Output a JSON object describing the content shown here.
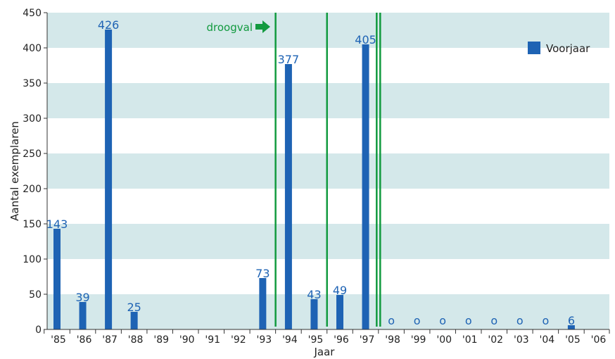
{
  "chart_data": {
    "type": "bar",
    "ylabel": "Aantal exemplaren",
    "xlabel": "Jaar",
    "ylim": [
      0,
      450
    ],
    "yticks": [
      0,
      50,
      100,
      150,
      200,
      250,
      300,
      350,
      400,
      450
    ],
    "grid": "alternating horizontal bands",
    "legend": "top-right",
    "categories": [
      "'85",
      "'86",
      "'87",
      "'88",
      "'89",
      "'90",
      "'91",
      "'92",
      "'93",
      "'94",
      "'95",
      "'96",
      "'97",
      "'98",
      "'99",
      "'00",
      "'01",
      "'02",
      "'03",
      "'04",
      "'05",
      "'06"
    ],
    "series": [
      {
        "name": "Voorjaar",
        "color": "#1e63b4",
        "values": [
          143,
          39,
          426,
          25,
          null,
          null,
          null,
          null,
          73,
          377,
          43,
          49,
          405,
          0,
          0,
          0,
          0,
          0,
          0,
          0,
          6,
          null
        ],
        "labels": [
          "143",
          "39",
          "426",
          "25",
          "",
          "",
          "",
          "",
          "73",
          "377",
          "43",
          "49",
          "405",
          "o",
          "o",
          "o",
          "o",
          "o",
          "o",
          "o",
          "6",
          ""
        ]
      }
    ],
    "annotations": [
      {
        "text": "droogval",
        "color": "#129a3f"
      }
    ],
    "markers": [
      {
        "type": "vertical-line",
        "x_between": [
          "'93",
          "'94"
        ],
        "color": "#129a3f"
      },
      {
        "type": "vertical-line",
        "x_between": [
          "'95",
          "'96"
        ],
        "color": "#129a3f"
      },
      {
        "type": "double-vertical-line",
        "x_between": [
          "'97",
          "'98"
        ],
        "color": "#129a3f"
      }
    ],
    "colors": {
      "bar": "#1e63b4",
      "band": "#d4e8ea",
      "marker": "#129a3f"
    }
  }
}
